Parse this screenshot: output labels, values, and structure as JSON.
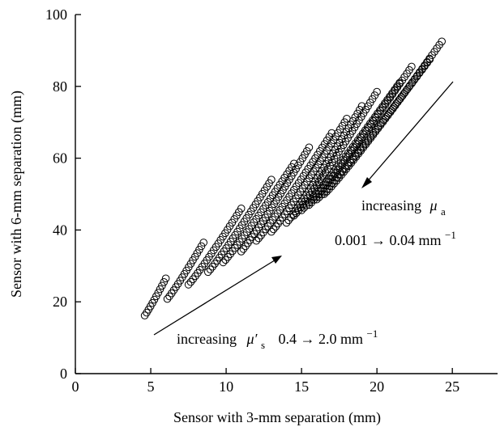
{
  "chart_data": {
    "type": "scatter",
    "title": "",
    "xlabel": "Sensor with 3-mm separation (mm)",
    "ylabel": "Sensor with 6-mm separation (mm)",
    "xlim": [
      0,
      28
    ],
    "ylim": [
      0,
      100
    ],
    "xticks": [
      0,
      5,
      10,
      15,
      20,
      25
    ],
    "yticks": [
      0,
      20,
      40,
      60,
      80,
      100
    ],
    "grid": false,
    "marker": "open-circle",
    "series": [
      {
        "start": [
          4.6,
          16.2
        ],
        "end": [
          6.0,
          26.5
        ]
      },
      {
        "start": [
          6.1,
          20.8
        ],
        "end": [
          8.5,
          36.5
        ]
      },
      {
        "start": [
          7.5,
          24.8
        ],
        "end": [
          11.0,
          46.0
        ]
      },
      {
        "start": [
          8.8,
          28.3
        ],
        "end": [
          13.0,
          54.0
        ]
      },
      {
        "start": [
          9.8,
          31.0
        ],
        "end": [
          14.5,
          58.5
        ]
      },
      {
        "start": [
          11.0,
          34.0
        ],
        "end": [
          15.5,
          63.0
        ]
      },
      {
        "start": [
          12.0,
          37.0
        ],
        "end": [
          17.0,
          67.0
        ]
      },
      {
        "start": [
          13.0,
          39.5
        ],
        "end": [
          18.0,
          71.0
        ]
      },
      {
        "start": [
          14.0,
          42.0
        ],
        "end": [
          19.0,
          74.5
        ]
      },
      {
        "start": [
          14.5,
          44.0
        ],
        "end": [
          20.0,
          78.5
        ]
      },
      {
        "start": [
          15.0,
          45.5
        ],
        "end": [
          21.5,
          81.0
        ]
      },
      {
        "start": [
          15.5,
          47.0
        ],
        "end": [
          22.3,
          85.5
        ]
      },
      {
        "start": [
          16.0,
          48.5
        ],
        "end": [
          23.5,
          87.5
        ]
      },
      {
        "start": [
          16.5,
          50.0
        ],
        "end": [
          24.3,
          92.5
        ]
      }
    ],
    "annotations": {
      "mua": {
        "prefix": "increasing",
        "symbol": "μ",
        "sub": "a",
        "range": "0.001   → 0.04 mm",
        "range_sup": "−1"
      },
      "mus": {
        "prefix": "increasing",
        "symbol": "μ′",
        "sub": "s",
        "range": "0.4   → 2.0 mm",
        "range_sup": "−1"
      }
    }
  }
}
